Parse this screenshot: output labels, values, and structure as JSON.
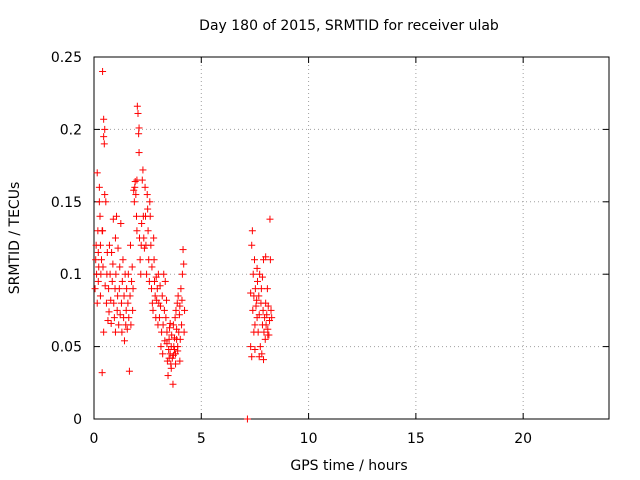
{
  "chart_data": {
    "type": "scatter",
    "title": "Day 180 of 2015, SRMTID for receiver ulab",
    "xlabel": "GPS time / hours",
    "ylabel": "SRMTID / TECUs",
    "xlim": [
      0,
      24
    ],
    "ylim": [
      0,
      0.25
    ],
    "xticks": [
      0,
      5,
      10,
      15,
      20
    ],
    "xtick_labels": [
      "0",
      "5",
      "10",
      "15",
      "20"
    ],
    "yticks": [
      0,
      0.05,
      0.1,
      0.15,
      0.2,
      0.25
    ],
    "ytick_labels": [
      "0",
      "0.05",
      "0.1",
      "0.15",
      "0.2",
      "0.25"
    ],
    "grid": true,
    "marker": "+",
    "color": "#ff0000",
    "series": [
      {
        "name": "SRMTID",
        "points": [
          [
            0.05,
            0.09
          ],
          [
            0.08,
            0.11
          ],
          [
            0.1,
            0.12
          ],
          [
            0.12,
            0.1
          ],
          [
            0.15,
            0.17
          ],
          [
            0.15,
            0.08
          ],
          [
            0.18,
            0.13
          ],
          [
            0.2,
            0.115
          ],
          [
            0.2,
            0.095
          ],
          [
            0.22,
            0.105
          ],
          [
            0.25,
            0.16
          ],
          [
            0.25,
            0.15
          ],
          [
            0.28,
            0.14
          ],
          [
            0.3,
            0.12
          ],
          [
            0.3,
            0.085
          ],
          [
            0.32,
            0.1
          ],
          [
            0.35,
            0.11
          ],
          [
            0.38,
            0.13
          ],
          [
            0.4,
            0.24
          ],
          [
            0.4,
            0.13
          ],
          [
            0.42,
            0.105
          ],
          [
            0.45,
            0.207
          ],
          [
            0.45,
            0.195
          ],
          [
            0.48,
            0.19
          ],
          [
            0.5,
            0.2
          ],
          [
            0.5,
            0.155
          ],
          [
            0.52,
            0.092
          ],
          [
            0.55,
            0.15
          ],
          [
            0.58,
            0.08
          ],
          [
            0.6,
            0.1
          ],
          [
            0.38,
            0.032
          ],
          [
            0.45,
            0.06
          ],
          [
            0.62,
            0.115
          ],
          [
            0.65,
            0.068
          ],
          [
            0.68,
            0.09
          ],
          [
            0.7,
            0.074
          ],
          [
            0.72,
            0.12
          ],
          [
            0.75,
            0.1
          ],
          [
            0.78,
            0.082
          ],
          [
            0.8,
            0.066
          ],
          [
            0.82,
            0.115
          ],
          [
            0.85,
            0.095
          ],
          [
            0.88,
            0.107
          ],
          [
            0.9,
            0.138
          ],
          [
            0.92,
            0.08
          ],
          [
            0.95,
            0.07
          ],
          [
            0.98,
            0.09
          ],
          [
            1.0,
            0.125
          ],
          [
            1.0,
            0.06
          ],
          [
            1.02,
            0.1
          ],
          [
            1.05,
            0.14
          ],
          [
            1.08,
            0.075
          ],
          [
            1.1,
            0.085
          ],
          [
            1.12,
            0.118
          ],
          [
            1.15,
            0.065
          ],
          [
            1.18,
            0.09
          ],
          [
            1.2,
            0.105
          ],
          [
            1.22,
            0.072
          ],
          [
            1.25,
            0.135
          ],
          [
            1.28,
            0.08
          ],
          [
            1.3,
            0.06
          ],
          [
            1.32,
            0.095
          ],
          [
            1.35,
            0.11
          ],
          [
            1.38,
            0.07
          ],
          [
            1.4,
            0.085
          ],
          [
            1.42,
            0.054
          ],
          [
            1.45,
            0.1
          ],
          [
            1.48,
            0.065
          ],
          [
            1.5,
            0.075
          ],
          [
            1.52,
            0.09
          ],
          [
            1.55,
            0.062
          ],
          [
            1.58,
            0.08
          ],
          [
            1.6,
            0.1
          ],
          [
            1.62,
            0.07
          ],
          [
            1.65,
            0.033
          ],
          [
            1.68,
            0.085
          ],
          [
            1.7,
            0.12
          ],
          [
            1.72,
            0.065
          ],
          [
            1.75,
            0.095
          ],
          [
            1.78,
            0.105
          ],
          [
            1.8,
            0.075
          ],
          [
            1.82,
            0.09
          ],
          [
            1.85,
            0.158
          ],
          [
            1.88,
            0.15
          ],
          [
            1.9,
            0.16
          ],
          [
            1.92,
            0.164
          ],
          [
            1.95,
            0.155
          ],
          [
            1.98,
            0.14
          ],
          [
            2.0,
            0.165
          ],
          [
            2.0,
            0.13
          ],
          [
            2.02,
            0.216
          ],
          [
            2.05,
            0.211
          ],
          [
            2.08,
            0.197
          ],
          [
            2.1,
            0.201
          ],
          [
            2.1,
            0.184
          ],
          [
            2.12,
            0.125
          ],
          [
            2.15,
            0.11
          ],
          [
            2.18,
            0.1
          ],
          [
            2.2,
            0.12
          ],
          [
            2.22,
            0.135
          ],
          [
            2.25,
            0.165
          ],
          [
            2.28,
            0.172
          ],
          [
            2.3,
            0.14
          ],
          [
            2.32,
            0.125
          ],
          [
            2.35,
            0.118
          ],
          [
            2.38,
            0.16
          ],
          [
            2.4,
            0.14
          ],
          [
            2.42,
            0.12
          ],
          [
            2.45,
            0.1
          ],
          [
            2.48,
            0.155
          ],
          [
            2.5,
            0.145
          ],
          [
            2.52,
            0.13
          ],
          [
            2.55,
            0.11
          ],
          [
            2.58,
            0.095
          ],
          [
            2.6,
            0.15
          ],
          [
            2.62,
            0.14
          ],
          [
            2.65,
            0.12
          ],
          [
            2.68,
            0.09
          ],
          [
            2.7,
            0.105
          ],
          [
            2.72,
            0.08
          ],
          [
            2.75,
            0.075
          ],
          [
            2.78,
            0.125
          ],
          [
            2.8,
            0.11
          ],
          [
            2.82,
            0.095
          ],
          [
            2.85,
            0.085
          ],
          [
            2.88,
            0.07
          ],
          [
            2.9,
            0.098
          ],
          [
            2.92,
            0.082
          ],
          [
            2.95,
            0.09
          ],
          [
            2.98,
            0.065
          ],
          [
            3.0,
            0.1
          ],
          [
            3.02,
            0.08
          ],
          [
            3.05,
            0.07
          ],
          [
            3.08,
            0.092
          ],
          [
            3.1,
            0.078
          ],
          [
            3.12,
            0.05
          ],
          [
            3.15,
            0.06
          ],
          [
            3.18,
            0.085
          ],
          [
            3.2,
            0.045
          ],
          [
            3.22,
            0.065
          ],
          [
            3.25,
            0.1
          ],
          [
            3.28,
            0.075
          ],
          [
            3.3,
            0.054
          ],
          [
            3.32,
            0.095
          ],
          [
            3.35,
            0.07
          ],
          [
            3.38,
            0.082
          ],
          [
            3.4,
            0.06
          ],
          [
            3.42,
            0.04
          ],
          [
            3.45,
            0.03
          ],
          [
            3.48,
            0.048
          ],
          [
            3.5,
            0.055
          ],
          [
            3.52,
            0.063
          ],
          [
            3.55,
            0.045
          ],
          [
            3.58,
            0.038
          ],
          [
            3.6,
            0.05
          ],
          [
            3.62,
            0.058
          ],
          [
            3.65,
            0.042
          ],
          [
            3.68,
            0.024
          ],
          [
            3.7,
            0.065
          ],
          [
            3.72,
            0.05
          ],
          [
            3.75,
            0.056
          ],
          [
            3.78,
            0.07
          ],
          [
            3.8,
            0.045
          ],
          [
            3.82,
            0.075
          ],
          [
            3.85,
            0.062
          ],
          [
            3.88,
            0.08
          ],
          [
            3.9,
            0.05
          ],
          [
            3.92,
            0.085
          ],
          [
            3.95,
            0.06
          ],
          [
            3.98,
            0.072
          ],
          [
            4.0,
            0.078
          ],
          [
            4.02,
            0.055
          ],
          [
            4.05,
            0.09
          ],
          [
            4.08,
            0.065
          ],
          [
            4.1,
            0.082
          ],
          [
            4.12,
            0.1
          ],
          [
            4.15,
            0.117
          ],
          [
            4.18,
            0.107
          ],
          [
            4.2,
            0.06
          ],
          [
            4.22,
            0.075
          ],
          [
            3.5,
            0.042
          ],
          [
            3.6,
            0.035
          ],
          [
            3.7,
            0.044
          ],
          [
            3.8,
            0.038
          ],
          [
            3.9,
            0.047
          ],
          [
            4.0,
            0.04
          ],
          [
            3.4,
            0.052
          ],
          [
            3.55,
            0.066
          ],
          [
            3.75,
            0.048
          ],
          [
            3.85,
            0.055
          ],
          [
            7.15,
            0.0
          ],
          [
            7.3,
            0.087
          ],
          [
            7.35,
            0.12
          ],
          [
            7.38,
            0.13
          ],
          [
            7.4,
            0.075
          ],
          [
            7.42,
            0.1
          ],
          [
            7.45,
            0.085
          ],
          [
            7.48,
            0.11
          ],
          [
            7.5,
            0.065
          ],
          [
            7.52,
            0.09
          ],
          [
            7.55,
            0.078
          ],
          [
            7.58,
            0.082
          ],
          [
            7.6,
            0.07
          ],
          [
            7.62,
            0.095
          ],
          [
            7.65,
            0.06
          ],
          [
            7.68,
            0.085
          ],
          [
            7.7,
            0.072
          ],
          [
            7.72,
            0.1
          ],
          [
            7.75,
            0.05
          ],
          [
            7.78,
            0.08
          ],
          [
            7.8,
            0.09
          ],
          [
            7.82,
            0.045
          ],
          [
            7.85,
            0.065
          ],
          [
            7.88,
            0.075
          ],
          [
            7.9,
            0.11
          ],
          [
            7.92,
            0.06
          ],
          [
            7.95,
            0.07
          ],
          [
            7.98,
            0.055
          ],
          [
            8.0,
            0.08
          ],
          [
            8.02,
            0.065
          ],
          [
            8.05,
            0.072
          ],
          [
            8.08,
            0.09
          ],
          [
            8.1,
            0.062
          ],
          [
            8.12,
            0.078
          ],
          [
            8.15,
            0.058
          ],
          [
            8.18,
            0.068
          ],
          [
            8.2,
            0.138
          ],
          [
            8.22,
            0.11
          ],
          [
            8.25,
            0.075
          ],
          [
            8.28,
            0.07
          ],
          [
            7.3,
            0.05
          ],
          [
            7.35,
            0.043
          ],
          [
            7.5,
            0.048
          ],
          [
            7.7,
            0.043
          ],
          [
            7.9,
            0.041
          ],
          [
            8.1,
            0.058
          ],
          [
            7.45,
            0.06
          ],
          [
            7.6,
            0.104
          ],
          [
            7.85,
            0.098
          ],
          [
            8.0,
            0.112
          ]
        ]
      }
    ]
  }
}
